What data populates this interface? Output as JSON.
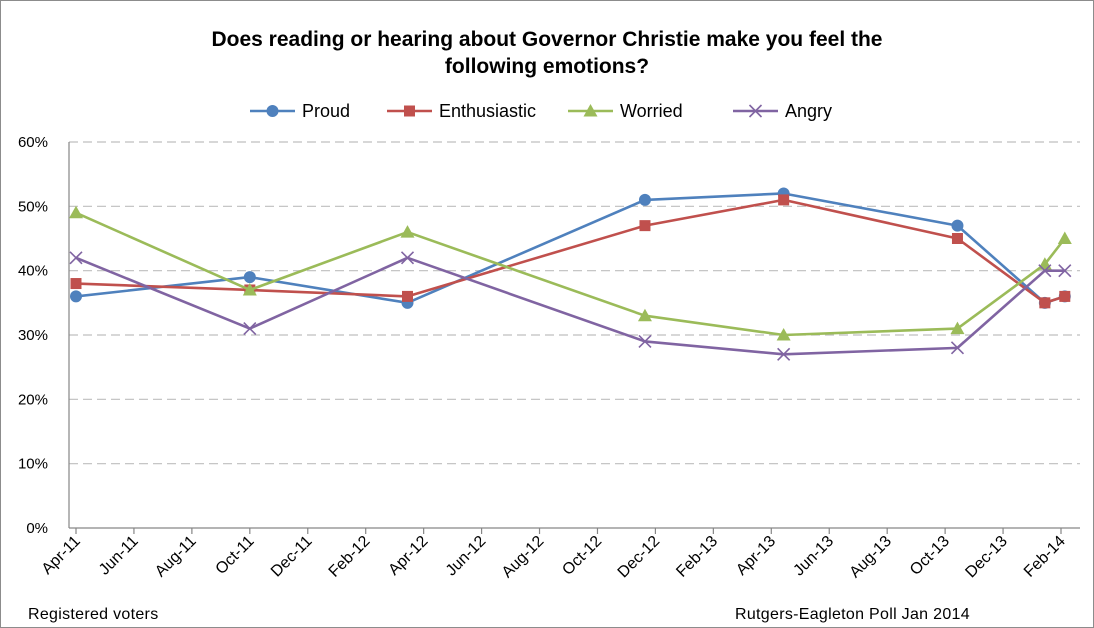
{
  "chart_data": {
    "type": "line",
    "title_lines": [
      "Does reading or hearing about Governor Christie make you feel the",
      "following emotions?"
    ],
    "x_tick_labels": [
      "Apr-11",
      "Jun-11",
      "Aug-11",
      "Oct-11",
      "Dec-11",
      "Feb-12",
      "Apr-12",
      "Jun-12",
      "Aug-12",
      "Oct-12",
      "Dec-12",
      "Feb-13",
      "Apr-13",
      "Jun-13",
      "Aug-13",
      "Oct-13",
      "Dec-13",
      "Feb-14"
    ],
    "y_tick_labels": [
      "0%",
      "10%",
      "20%",
      "30%",
      "40%",
      "50%",
      "60%"
    ],
    "ylim": [
      0,
      60
    ],
    "y_ticks": [
      0,
      10,
      20,
      30,
      40,
      50,
      60
    ],
    "x_range": [
      "2011-04-01",
      "2014-02-01"
    ],
    "grid": true,
    "legend_position": "top",
    "series": [
      {
        "name": "Proud",
        "color": "#4f81bd",
        "marker": "circle",
        "x": [
          "2011-04-01",
          "2011-10-01",
          "2012-03-15",
          "2012-11-20",
          "2013-04-15",
          "2013-10-15",
          "2014-01-15",
          "2014-02-05"
        ],
        "y": [
          36,
          39,
          35,
          51,
          52,
          47,
          35,
          36
        ]
      },
      {
        "name": "Enthusiastic",
        "color": "#c0504d",
        "marker": "square",
        "x": [
          "2011-04-01",
          "2011-10-01",
          "2012-03-15",
          "2012-11-20",
          "2013-04-15",
          "2013-10-15",
          "2014-01-15",
          "2014-02-05"
        ],
        "y": [
          38,
          37,
          36,
          47,
          51,
          45,
          35,
          36
        ]
      },
      {
        "name": "Worried",
        "color": "#9bbb59",
        "marker": "triangle",
        "x": [
          "2011-04-01",
          "2011-10-01",
          "2012-03-15",
          "2012-11-20",
          "2013-04-15",
          "2013-10-15",
          "2014-01-15",
          "2014-02-05"
        ],
        "y": [
          49,
          37,
          46,
          33,
          30,
          31,
          41,
          45
        ]
      },
      {
        "name": "Angry",
        "color": "#8064a2",
        "marker": "x",
        "x": [
          "2011-04-01",
          "2011-10-01",
          "2012-03-15",
          "2012-11-20",
          "2013-04-15",
          "2013-10-15",
          "2014-01-15",
          "2014-02-05"
        ],
        "y": [
          42,
          31,
          42,
          29,
          27,
          28,
          40,
          40
        ]
      }
    ]
  },
  "notes": {
    "left": "Registered voters",
    "right": "Rutgers-Eagleton Poll Jan 2014"
  }
}
